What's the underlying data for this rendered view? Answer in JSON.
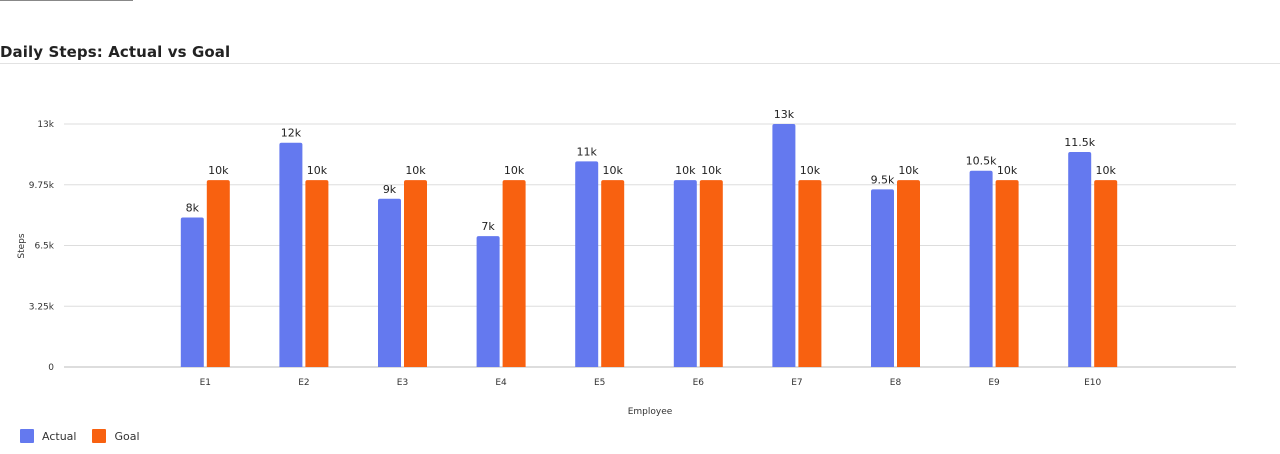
{
  "colors": {
    "actual": "#6479EF",
    "goal": "#F86110",
    "grid": "#dddddd",
    "axis": "#bbbbbb"
  },
  "chart_data": {
    "type": "bar",
    "title": "Daily Steps: Actual vs Goal",
    "xlabel": "Employee",
    "ylabel": "Steps",
    "categories": [
      "E1",
      "E2",
      "E3",
      "E4",
      "E5",
      "E6",
      "E7",
      "E8",
      "E9",
      "E10"
    ],
    "series": [
      {
        "name": "Actual",
        "values": [
          8000,
          12000,
          9000,
          7000,
          11000,
          10000,
          13000,
          9500,
          10500,
          11500
        ],
        "labels": [
          "8k",
          "12k",
          "9k",
          "7k",
          "11k",
          "10k",
          "13k",
          "9.5k",
          "10.5k",
          "11.5k"
        ]
      },
      {
        "name": "Goal",
        "values": [
          10000,
          10000,
          10000,
          10000,
          10000,
          10000,
          10000,
          10000,
          10000,
          10000
        ],
        "labels": [
          "10k",
          "10k",
          "10k",
          "10k",
          "10k",
          "10k",
          "10k",
          "10k",
          "10k",
          "10k"
        ]
      }
    ],
    "ylim": [
      0,
      13000
    ],
    "yticks": [
      0,
      3250,
      6500,
      9750,
      13000
    ],
    "ytick_labels": [
      "0",
      "3.25k",
      "6.5k",
      "9.75k",
      "13k"
    ],
    "grid": true,
    "legend": "bottom-left"
  }
}
